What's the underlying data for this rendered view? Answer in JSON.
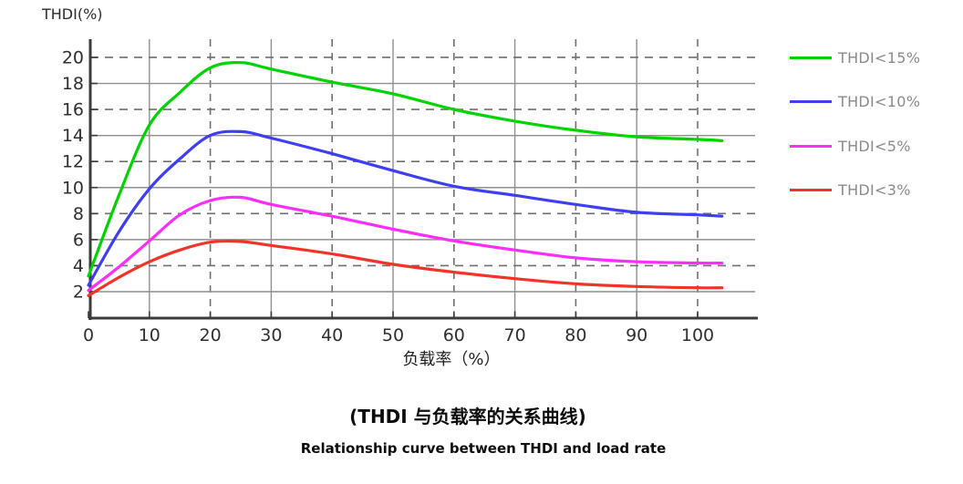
{
  "chart": {
    "y_axis_title": "THDI(%)",
    "x_axis_label": "负载率（%）"
  },
  "captions": {
    "chinese": "(THDI 与负载率的关系曲线)",
    "english": "Relationship curve between THDI and load rate"
  },
  "colors": {
    "solid_grid": "#8f8f8f",
    "dashed_grid": "#6f6f6f",
    "axis": "#3b3b3b",
    "tick_label": "#2f2f2f",
    "legend_text": "#8a8a8a",
    "background": "#ffffff"
  },
  "chart_data": {
    "type": "line",
    "title": "(THDI 与负载率的关系曲线)",
    "subtitle": "Relationship curve between THDI and load rate",
    "xlabel": "负载率（%）",
    "ylabel": "THDI(%)",
    "xlim": [
      0,
      110
    ],
    "ylim": [
      0,
      21.5
    ],
    "x_ticks": [
      0,
      10,
      20,
      30,
      40,
      50,
      60,
      70,
      80,
      90,
      100
    ],
    "y_ticks": [
      2,
      4,
      6,
      8,
      10,
      12,
      14,
      16,
      18,
      20
    ],
    "grid": {
      "h_solid": [
        2,
        6,
        10,
        14,
        18
      ],
      "h_dashed": [
        4,
        8,
        12,
        16,
        20
      ],
      "v_solid": [
        10,
        30,
        50,
        70,
        90
      ],
      "v_dashed": [
        20,
        40,
        60,
        80,
        100
      ]
    },
    "legend_position": "right",
    "x": [
      0,
      5,
      10,
      15,
      20,
      25,
      30,
      40,
      50,
      60,
      70,
      80,
      90,
      100,
      104
    ],
    "series": [
      {
        "name": "THDI<15%",
        "color": "#00d400",
        "values": [
          3.2,
          9.4,
          14.8,
          17.3,
          19.2,
          19.6,
          19.1,
          18.1,
          17.2,
          16.0,
          15.1,
          14.4,
          13.9,
          13.7,
          13.6
        ]
      },
      {
        "name": "THDI<10%",
        "color": "#3e3ef2",
        "values": [
          2.5,
          6.6,
          9.9,
          12.2,
          14.0,
          14.3,
          13.8,
          12.6,
          11.3,
          10.1,
          9.4,
          8.7,
          8.1,
          7.9,
          7.8
        ]
      },
      {
        "name": "THDI<5%",
        "color": "#ff2cfc",
        "values": [
          2.1,
          3.9,
          5.9,
          7.9,
          9.0,
          9.25,
          8.7,
          7.8,
          6.8,
          5.9,
          5.2,
          4.6,
          4.3,
          4.2,
          4.2
        ]
      },
      {
        "name": "THDI<3%",
        "color": "#f23428",
        "values": [
          1.7,
          3.1,
          4.3,
          5.2,
          5.8,
          5.85,
          5.55,
          4.9,
          4.1,
          3.5,
          3.0,
          2.6,
          2.4,
          2.3,
          2.3
        ]
      }
    ]
  }
}
